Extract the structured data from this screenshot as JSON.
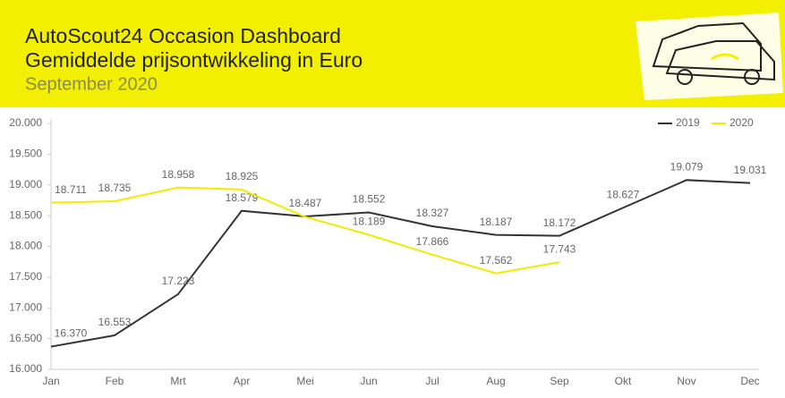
{
  "chart_data": {
    "type": "line",
    "title": "AutoScout24 Occasion Dashboard",
    "subtitle": "Gemiddelde prijsontwikkeling in Euro",
    "date": "September 2020",
    "categories": [
      "Jan",
      "Feb",
      "Mrt",
      "Apr",
      "Mei",
      "Jun",
      "Jul",
      "Aug",
      "Sep",
      "Okt",
      "Nov",
      "Dec"
    ],
    "series": [
      {
        "name": "2019",
        "color": "#333333",
        "values": [
          16370,
          16553,
          17223,
          18579,
          18487,
          18552,
          18327,
          18187,
          18172,
          18627,
          19079,
          19031
        ],
        "value_labels": [
          "16.370",
          "16.553",
          "17.223",
          "18.579",
          "18.487",
          "18.552",
          "18.327",
          "18.187",
          "18.172",
          "18.627",
          "19.079",
          "19.031"
        ]
      },
      {
        "name": "2020",
        "color": "#f2ea00",
        "values": [
          18711,
          18735,
          18958,
          18925,
          18480,
          18189,
          17866,
          17562,
          17743,
          null,
          null,
          null
        ],
        "value_labels": [
          "18.711",
          "18.735",
          "18.958",
          "18.925",
          null,
          "18.189",
          "17.866",
          "17.562",
          "17.743",
          null,
          null,
          null
        ]
      }
    ],
    "ylim": [
      16000,
      20000
    ],
    "yticks": [
      {
        "value": 16000,
        "label": "16.000"
      },
      {
        "value": 16500,
        "label": "16.500"
      },
      {
        "value": 17000,
        "label": "17.000"
      },
      {
        "value": 17500,
        "label": "17.500"
      },
      {
        "value": 18000,
        "label": "18.000"
      },
      {
        "value": 18500,
        "label": "18.500"
      },
      {
        "value": 19000,
        "label": "19.000"
      },
      {
        "value": 19500,
        "label": "19.500"
      },
      {
        "value": 20000,
        "label": "20.000"
      }
    ],
    "legend": "top-right"
  }
}
